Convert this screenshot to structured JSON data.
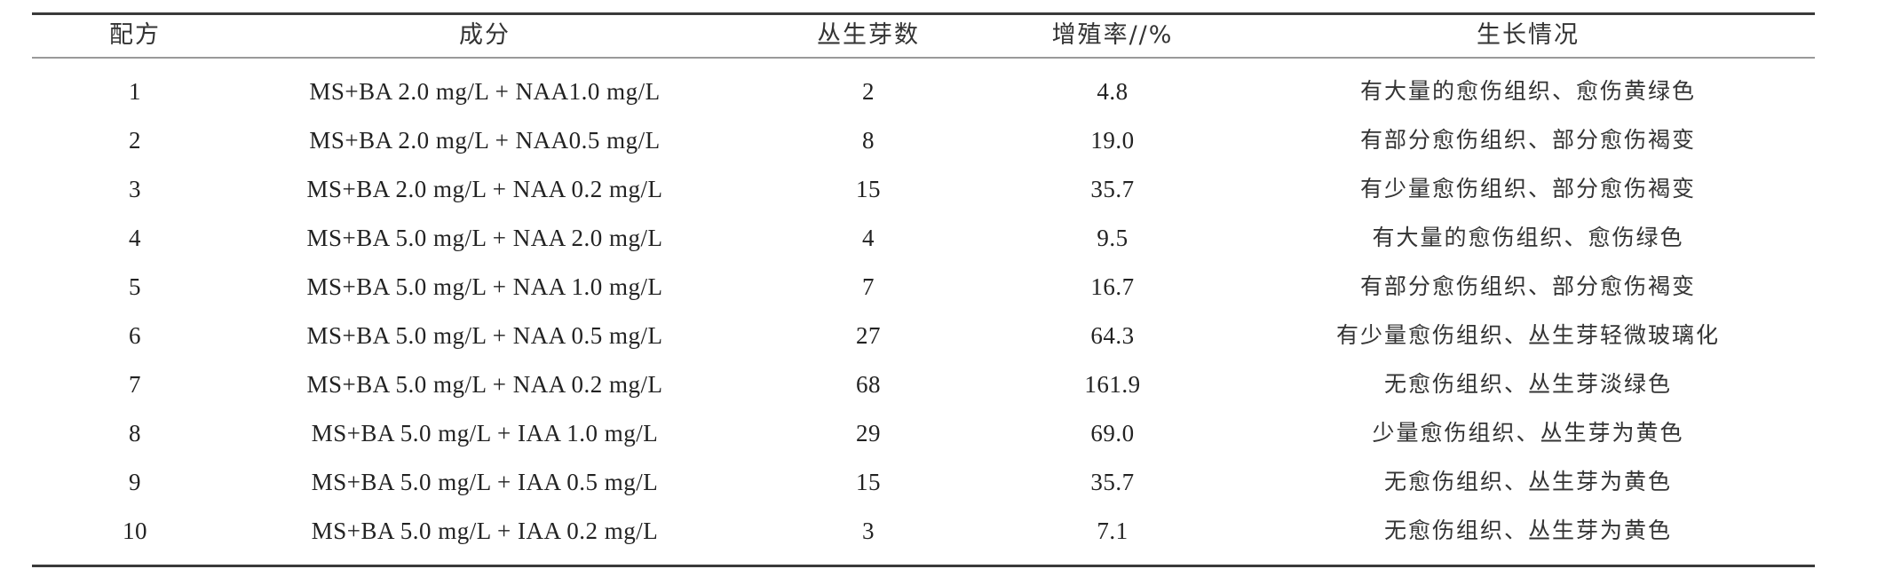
{
  "table": {
    "headers": [
      "配方",
      "成分",
      "丛生芽数",
      "增殖率//%",
      "生长情况"
    ],
    "rows": [
      [
        "1",
        "MS+BA 2.0 mg/L + NAA1.0 mg/L",
        "2",
        "4.8",
        "有大量的愈伤组织、愈伤黄绿色"
      ],
      [
        "2",
        "MS+BA 2.0 mg/L + NAA0.5 mg/L",
        "8",
        "19.0",
        "有部分愈伤组织、部分愈伤褐变"
      ],
      [
        "3",
        "MS+BA 2.0 mg/L + NAA 0.2 mg/L",
        "15",
        "35.7",
        "有少量愈伤组织、部分愈伤褐变"
      ],
      [
        "4",
        "MS+BA 5.0 mg/L + NAA 2.0 mg/L",
        "4",
        "9.5",
        "有大量的愈伤组织、愈伤绿色"
      ],
      [
        "5",
        "MS+BA 5.0 mg/L + NAA 1.0 mg/L",
        "7",
        "16.7",
        "有部分愈伤组织、部分愈伤褐变"
      ],
      [
        "6",
        "MS+BA 5.0 mg/L + NAA 0.5 mg/L",
        "27",
        "64.3",
        "有少量愈伤组织、丛生芽轻微玻璃化"
      ],
      [
        "7",
        "MS+BA 5.0 mg/L + NAA 0.2 mg/L",
        "68",
        "161.9",
        "无愈伤组织、丛生芽淡绿色"
      ],
      [
        "8",
        "MS+BA 5.0 mg/L + IAA 1.0 mg/L",
        "29",
        "69.0",
        "少量愈伤组织、丛生芽为黄色"
      ],
      [
        "9",
        "MS+BA 5.0 mg/L + IAA 0.5 mg/L",
        "15",
        "35.7",
        "无愈伤组织、丛生芽为黄色"
      ],
      [
        "10",
        "MS+BA 5.0 mg/L + IAA 0.2 mg/L",
        "3",
        "7.1",
        "无愈伤组织、丛生芽为黄色"
      ]
    ]
  }
}
